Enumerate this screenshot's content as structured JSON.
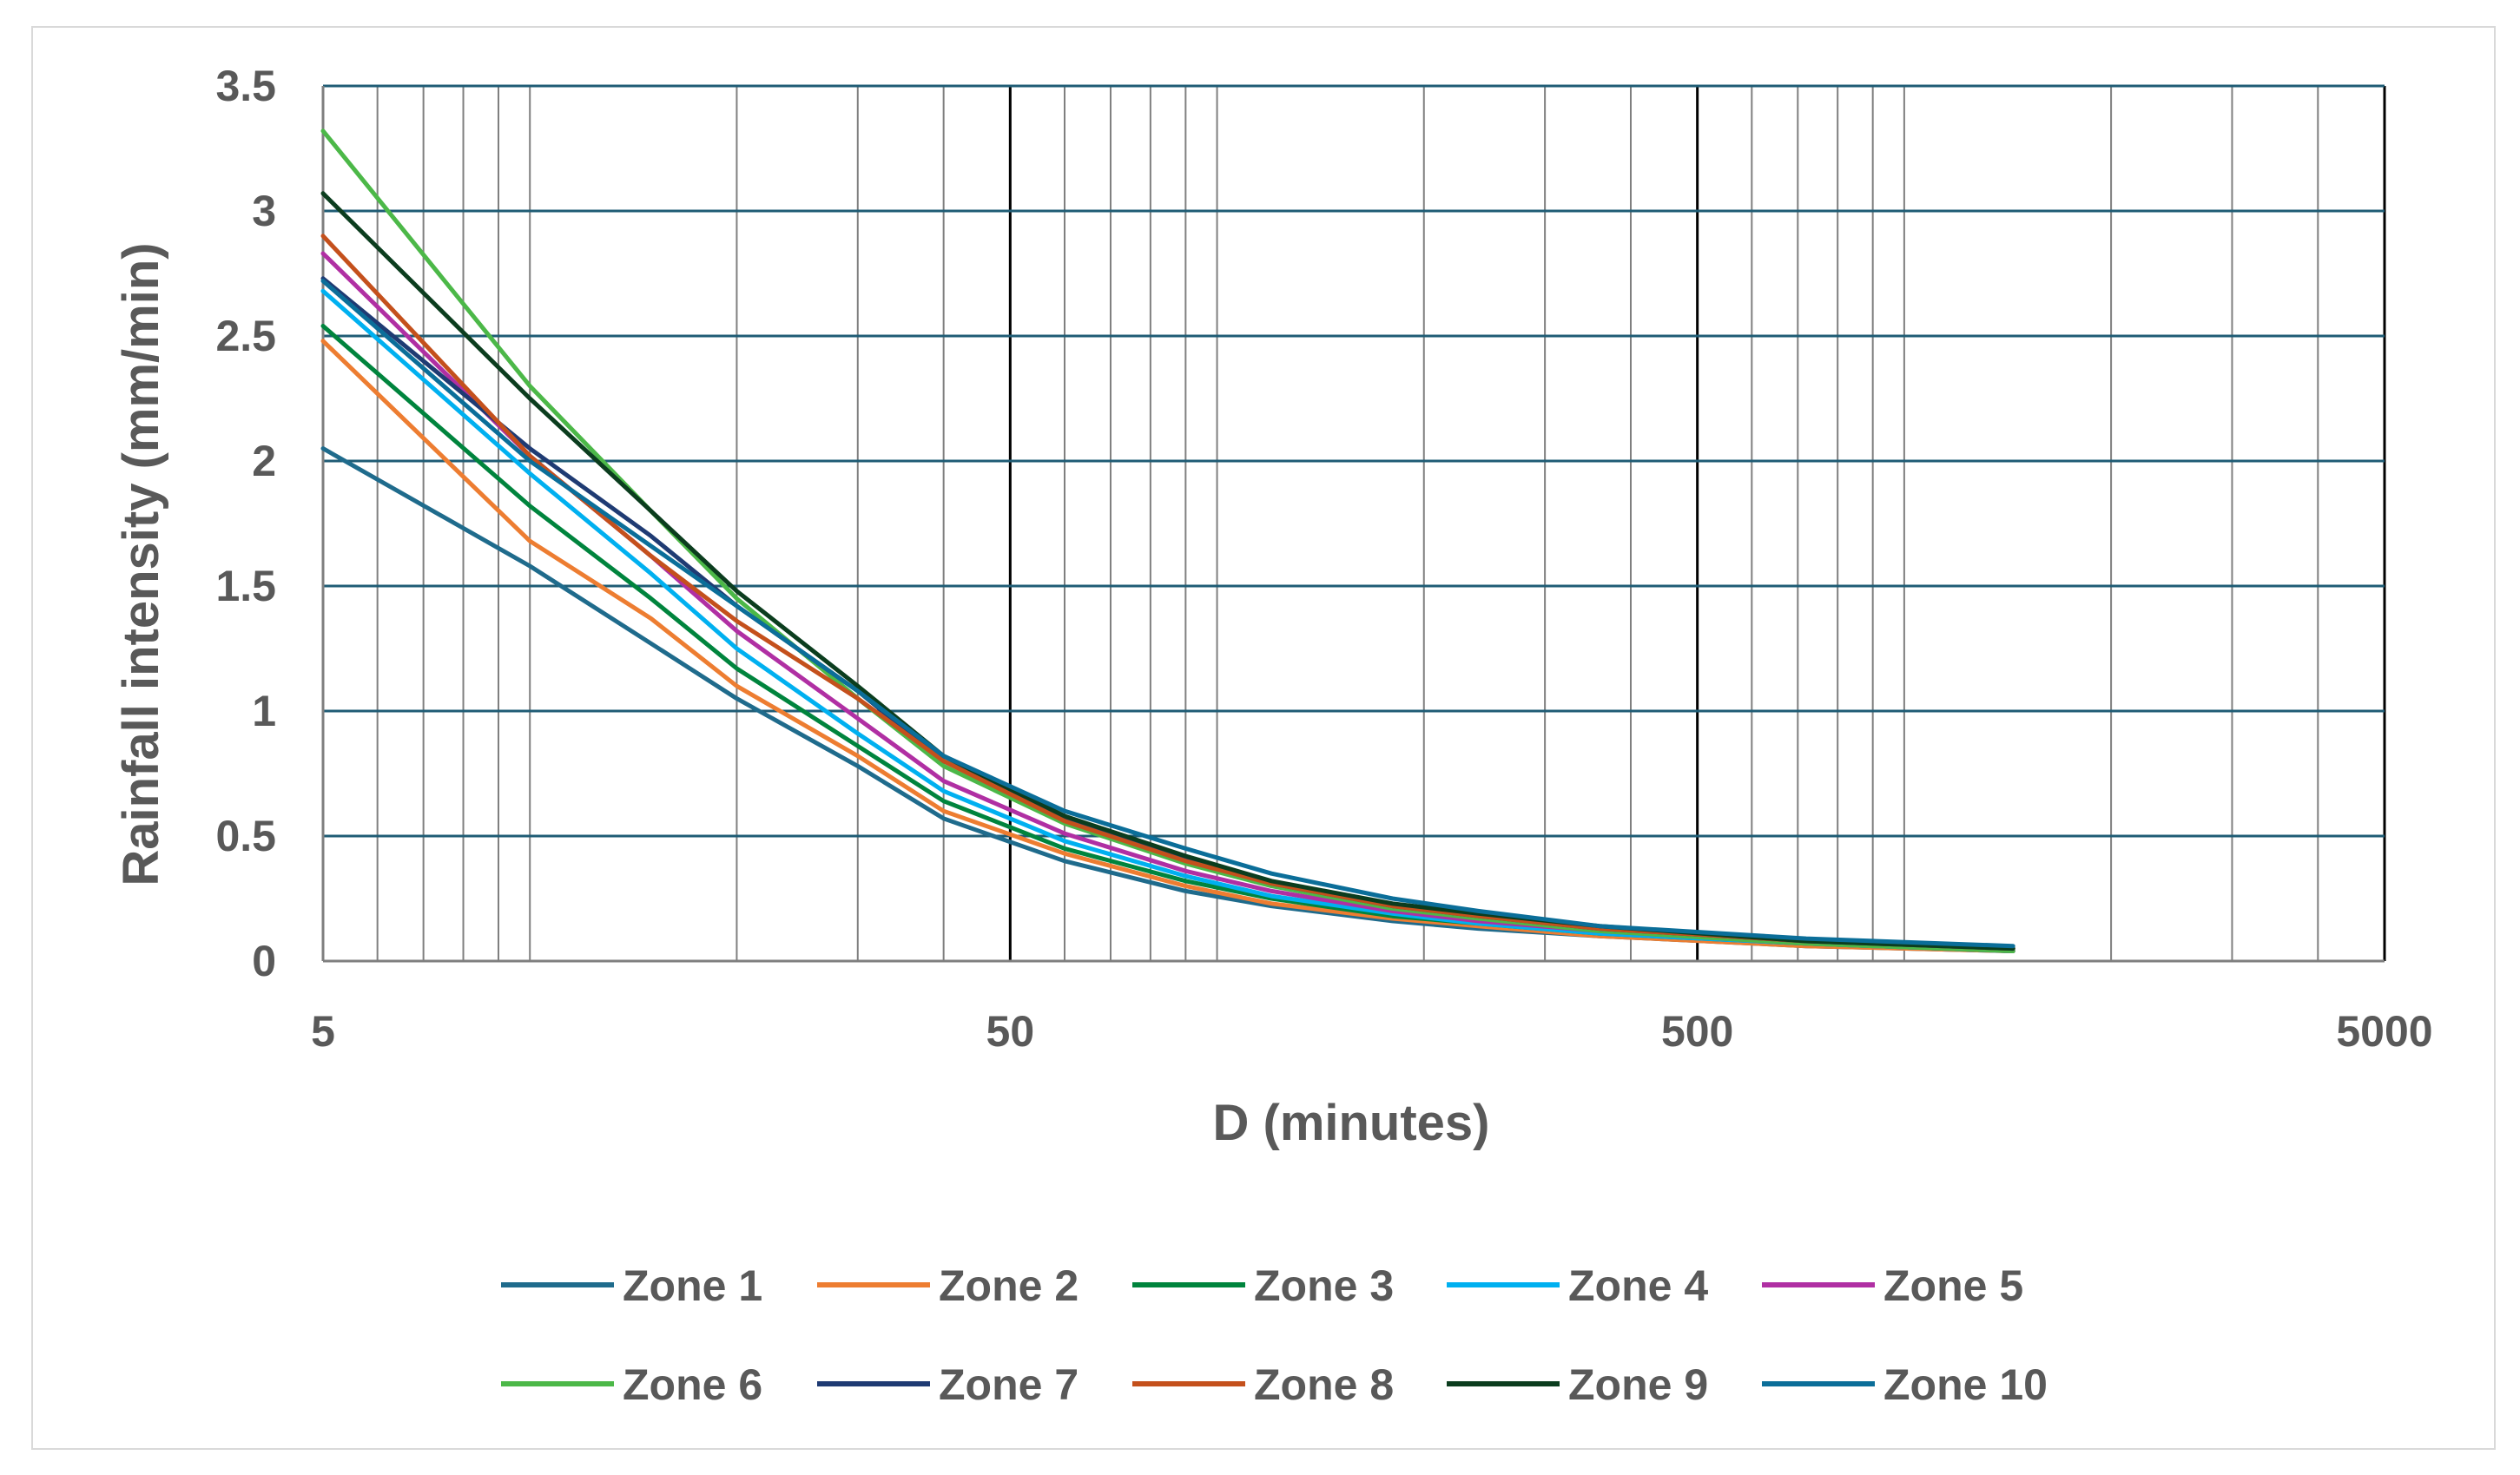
{
  "chart_data": {
    "type": "line",
    "xlabel": "D (minutes)",
    "ylabel": "Rainfall intensity (mm/min)",
    "xscale": "log",
    "xlim": [
      5,
      5000
    ],
    "ylim": [
      0,
      3.5
    ],
    "x_ticks": [
      5,
      50,
      500,
      5000
    ],
    "x_tick_labels": [
      "5",
      "50",
      "500",
      "5000"
    ],
    "y_ticks": [
      0,
      0.5,
      1,
      1.5,
      2,
      2.5,
      3,
      3.5
    ],
    "y_tick_labels": [
      "0",
      "0.5",
      "1",
      "1.5",
      "2",
      "2.5",
      "3",
      "3.5"
    ],
    "grid": true,
    "legend_position": "bottom",
    "x": [
      5,
      10,
      15,
      20,
      30,
      40,
      60,
      90,
      120,
      180,
      240,
      360,
      720,
      1440
    ],
    "series": [
      {
        "name": "Zone 1",
        "color": "#1f6b8c",
        "values": [
          2.05,
          1.58,
          1.27,
          1.05,
          0.78,
          0.57,
          0.4,
          0.28,
          0.22,
          0.16,
          0.13,
          0.1,
          0.06,
          0.04
        ]
      },
      {
        "name": "Zone 2",
        "color": "#ed7d31",
        "values": [
          2.48,
          1.68,
          1.37,
          1.1,
          0.82,
          0.6,
          0.43,
          0.3,
          0.23,
          0.17,
          0.14,
          0.1,
          0.06,
          0.04
        ]
      },
      {
        "name": "Zone 3",
        "color": "#00843d",
        "values": [
          2.54,
          1.82,
          1.45,
          1.17,
          0.86,
          0.64,
          0.45,
          0.32,
          0.25,
          0.18,
          0.15,
          0.11,
          0.07,
          0.04
        ]
      },
      {
        "name": "Zone 4",
        "color": "#00b0f0",
        "values": [
          2.68,
          1.95,
          1.55,
          1.25,
          0.91,
          0.68,
          0.48,
          0.34,
          0.26,
          0.19,
          0.15,
          0.11,
          0.07,
          0.04
        ]
      },
      {
        "name": "Zone 5",
        "color": "#b02fa3",
        "values": [
          2.83,
          2.02,
          1.62,
          1.32,
          0.97,
          0.72,
          0.51,
          0.36,
          0.28,
          0.2,
          0.16,
          0.12,
          0.07,
          0.04
        ]
      },
      {
        "name": "Zone 6",
        "color": "#4cb848",
        "values": [
          3.32,
          2.3,
          1.8,
          1.45,
          1.05,
          0.78,
          0.55,
          0.39,
          0.3,
          0.21,
          0.17,
          0.12,
          0.07,
          0.04
        ]
      },
      {
        "name": "Zone 7",
        "color": "#1f3b73",
        "values": [
          2.73,
          2.05,
          1.7,
          1.42,
          1.08,
          0.8,
          0.57,
          0.41,
          0.31,
          0.22,
          0.18,
          0.13,
          0.08,
          0.05
        ]
      },
      {
        "name": "Zone 8",
        "color": "#c4501c",
        "values": [
          2.9,
          2.02,
          1.62,
          1.36,
          1.05,
          0.8,
          0.56,
          0.4,
          0.31,
          0.22,
          0.18,
          0.13,
          0.08,
          0.05
        ]
      },
      {
        "name": "Zone 9",
        "color": "#0b3d1e",
        "values": [
          3.07,
          2.25,
          1.8,
          1.48,
          1.1,
          0.82,
          0.58,
          0.42,
          0.32,
          0.23,
          0.19,
          0.14,
          0.08,
          0.05
        ]
      },
      {
        "name": "Zone 10",
        "color": "#0b6e99",
        "values": [
          2.72,
          2.0,
          1.66,
          1.42,
          1.08,
          0.82,
          0.6,
          0.45,
          0.35,
          0.25,
          0.2,
          0.14,
          0.09,
          0.06
        ]
      }
    ]
  }
}
